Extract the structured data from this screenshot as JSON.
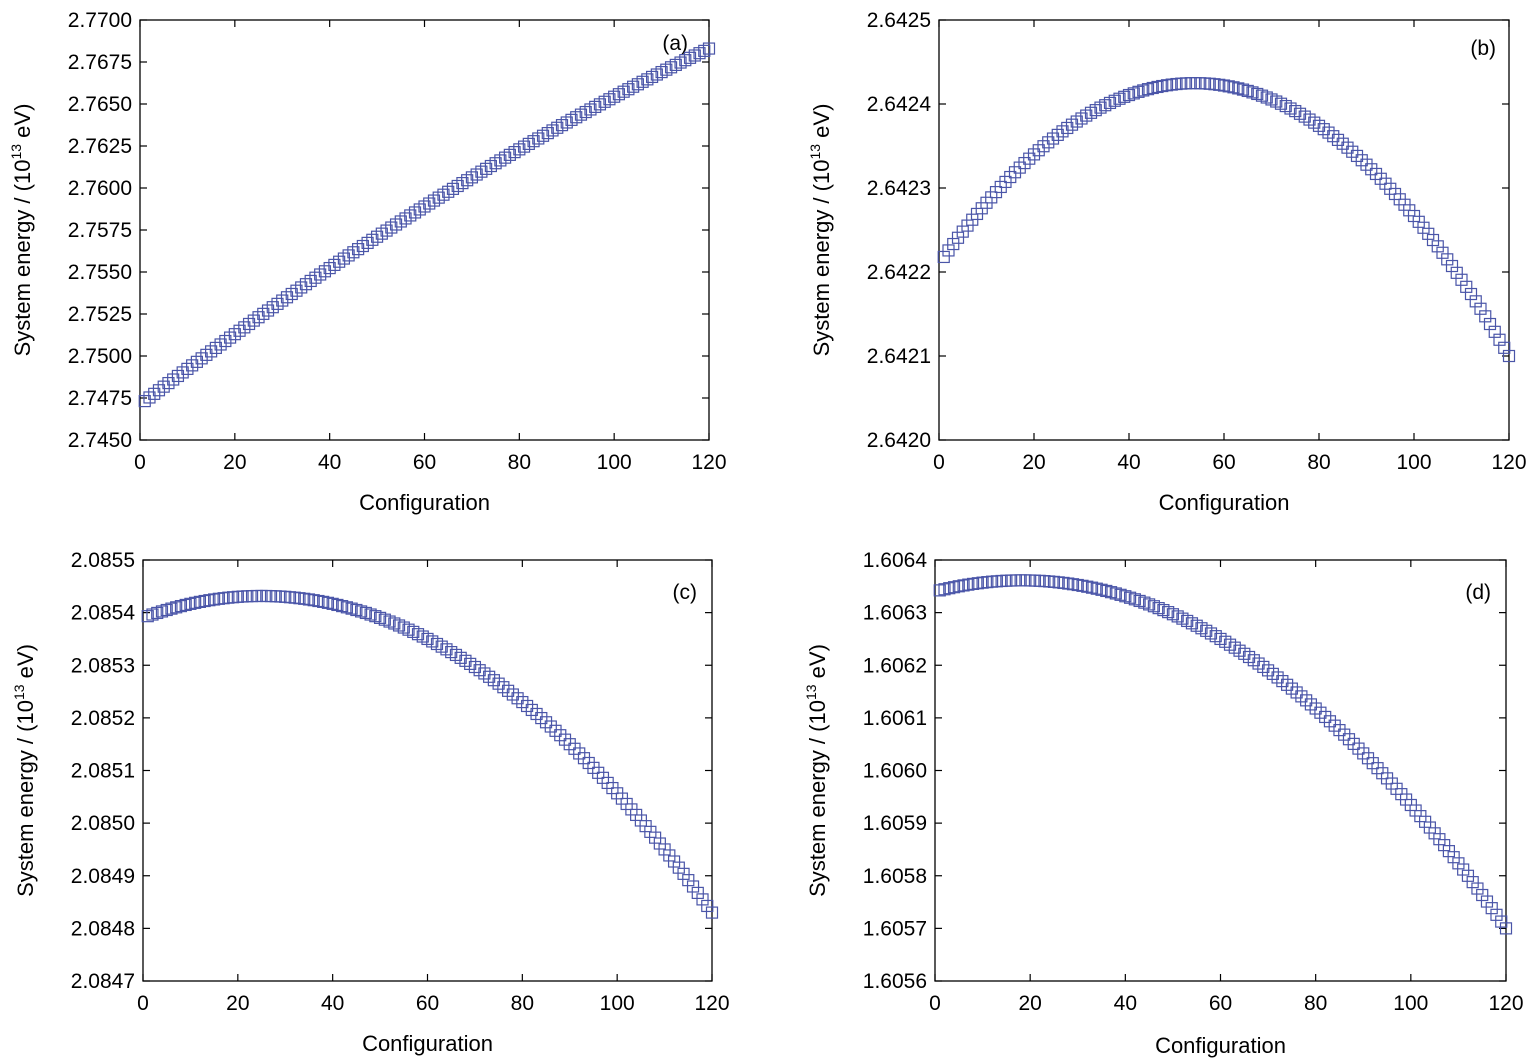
{
  "figure": {
    "marker_color": "#4a55a8"
  },
  "chart_data": [
    {
      "type": "scatter",
      "panel_label": "(a)",
      "xlabel": "Configuration",
      "ylabel_main": "System energy / (10",
      "ylabel_sup": "13",
      "ylabel_tail": " eV)",
      "xlim": [
        0,
        120
      ],
      "ylim": [
        2.745,
        2.77
      ],
      "xticks": [
        0,
        20,
        40,
        60,
        80,
        100,
        120
      ],
      "xtick_labels": [
        "0",
        "20",
        "40",
        "60",
        "80",
        "100",
        "120"
      ],
      "yticks": [
        2.745,
        2.7475,
        2.75,
        2.7525,
        2.755,
        2.7575,
        2.76,
        2.7625,
        2.765,
        2.7675,
        2.77
      ],
      "ytick_labels": [
        "2.7450",
        "2.7475",
        "2.7500",
        "2.7525",
        "2.7550",
        "2.7575",
        "2.7600",
        "2.7625",
        "2.7650",
        "2.7675",
        "2.7700"
      ],
      "series": [
        {
          "x_start": 1,
          "x_end": 120,
          "x_step": 1,
          "curve": "quadratic",
          "y_at_x0": 2.7471,
          "y_at_x60": 2.7589,
          "y_at_x120": 2.7683
        }
      ]
    },
    {
      "type": "scatter",
      "panel_label": "(b)",
      "xlabel": "Configuration",
      "ylabel_main": "System energy / (10",
      "ylabel_sup": "13",
      "ylabel_tail": " eV)",
      "xlim": [
        0,
        120
      ],
      "ylim": [
        2.642,
        2.6425
      ],
      "xticks": [
        0,
        20,
        40,
        60,
        80,
        100,
        120
      ],
      "xtick_labels": [
        "0",
        "20",
        "40",
        "60",
        "80",
        "100",
        "120"
      ],
      "yticks": [
        2.642,
        2.6421,
        2.6422,
        2.6423,
        2.6424,
        2.6425
      ],
      "ytick_labels": [
        "2.6420",
        "2.6421",
        "2.6422",
        "2.6423",
        "2.6424",
        "2.6425"
      ],
      "series": [
        {
          "x_start": 1,
          "x_end": 120,
          "x_step": 1,
          "curve": "quadratic",
          "y_at_x0": 2.64221,
          "y_at_x60": 2.642422,
          "y_at_x120": 2.6421
        }
      ]
    },
    {
      "type": "scatter",
      "panel_label": "(c)",
      "xlabel": "Configuration",
      "ylabel_main": "System energy / (10",
      "ylabel_sup": "13",
      "ylabel_tail": " eV)",
      "xlim": [
        0,
        120
      ],
      "ylim": [
        2.0847,
        2.0855
      ],
      "xticks": [
        0,
        20,
        40,
        60,
        80,
        100,
        120
      ],
      "xtick_labels": [
        "0",
        "20",
        "40",
        "60",
        "80",
        "100",
        "120"
      ],
      "yticks": [
        2.0847,
        2.0848,
        2.0849,
        2.085,
        2.0851,
        2.0852,
        2.0853,
        2.0854,
        2.0855
      ],
      "ytick_labels": [
        "2.0847",
        "2.0848",
        "2.0849",
        "2.0850",
        "2.0851",
        "2.0852",
        "2.0853",
        "2.0854",
        "2.0855"
      ],
      "series": [
        {
          "x_start": 1,
          "x_end": 120,
          "x_step": 1,
          "curve": "quadratic",
          "y_at_x0": 2.08539,
          "y_at_x60": 2.08535,
          "y_at_x120": 2.08483
        }
      ]
    },
    {
      "type": "scatter",
      "panel_label": "(d)",
      "xlabel": "Configuration",
      "ylabel_main": "System energy / (10",
      "ylabel_sup": "13",
      "ylabel_tail": " eV)",
      "xlim": [
        0,
        120
      ],
      "ylim": [
        1.6056,
        1.6064
      ],
      "xticks": [
        0,
        20,
        40,
        60,
        80,
        100,
        120
      ],
      "xtick_labels": [
        "0",
        "20",
        "40",
        "60",
        "80",
        "100",
        "120"
      ],
      "yticks": [
        1.6056,
        1.6057,
        1.6058,
        1.6059,
        1.606,
        1.6061,
        1.6062,
        1.6063,
        1.6064
      ],
      "ytick_labels": [
        "1.6056",
        "1.6057",
        "1.6058",
        "1.6059",
        "1.6060",
        "1.6061",
        "1.6062",
        "1.6063",
        "1.6064"
      ],
      "series": [
        {
          "x_start": 1,
          "x_end": 120,
          "x_step": 1,
          "curve": "quadratic",
          "y_at_x0": 1.60634,
          "y_at_x60": 1.60625,
          "y_at_x120": 1.6057
        }
      ]
    }
  ]
}
